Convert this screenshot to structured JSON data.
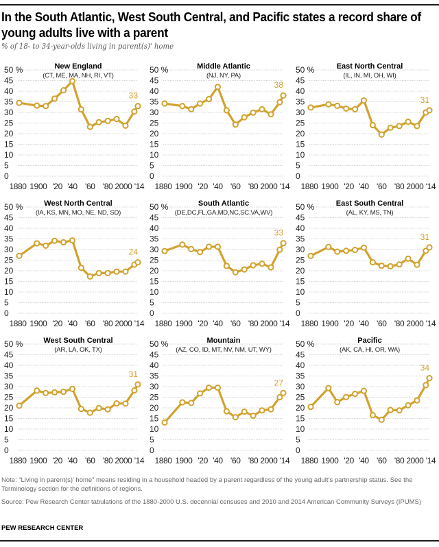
{
  "header": {
    "title": "In the South Atlantic, West South Central, and Pacific states a record share of young adults live with a parent",
    "subtitle": "% of 18- to 34-year-olds living in parent(s)' home"
  },
  "footer": {
    "note": "Note: “Living in parent(s)’ home” means residing in a household headed by a parent regardless of the young adult’s partnership status. See the Terminology section for the definitions of regions.",
    "source": "Source: Pew Research Center tabulations of the 1880-2000 U.S. decennial censuses and 2010 and 2014 American Community Surveys (IPUMS)",
    "brand": "PEW RESEARCH CENTER"
  },
  "colors": {
    "line": "#D1A22E",
    "grid": "#b5b5b5",
    "text": "#000000",
    "muted": "#666666"
  },
  "chart_data": [
    {
      "type": "line",
      "title": "New England",
      "subtitle": "(CT, ME, MA, NH, RI, VT)",
      "x": [
        1880,
        1900,
        1910,
        1920,
        1930,
        1940,
        1950,
        1960,
        1970,
        1980,
        1990,
        2000,
        2010,
        2014
      ],
      "values": [
        34.5,
        33.2,
        33,
        36.5,
        40.4,
        44.7,
        31.4,
        23.2,
        25.4,
        26,
        26.9,
        23.8,
        30.4,
        33
      ],
      "end_label": "33",
      "ylim": [
        0,
        50
      ],
      "yticks": [
        "50 %",
        "45",
        "40",
        "35",
        "30",
        "25",
        "20",
        "15",
        "10",
        "5",
        "0"
      ],
      "xticks": [
        "1880",
        "1900",
        "'20",
        "'40",
        "'60",
        "'80",
        "2000",
        "'14"
      ],
      "grid": true
    },
    {
      "type": "line",
      "title": "Middle Atlantic",
      "subtitle": "(NJ, NY, PA)",
      "x": [
        1880,
        1900,
        1910,
        1920,
        1930,
        1940,
        1950,
        1960,
        1970,
        1980,
        1990,
        2000,
        2010,
        2014
      ],
      "values": [
        34.2,
        33,
        31.5,
        34.2,
        36.3,
        42,
        31,
        24.3,
        27.7,
        29.9,
        31.5,
        29.1,
        34.8,
        38
      ],
      "end_label": "38",
      "ylim": [
        0,
        50
      ],
      "yticks": [
        "50 %",
        "45",
        "40",
        "35",
        "30",
        "25",
        "20",
        "15",
        "10",
        "5",
        "0"
      ],
      "xticks": [
        "1880",
        "1900",
        "'20",
        "'40",
        "'60",
        "'80",
        "2000",
        "'14"
      ],
      "grid": true
    },
    {
      "type": "line",
      "title": "East North Central",
      "subtitle": "(IL, IN, MI, OH, WI)",
      "x": [
        1880,
        1900,
        1910,
        1920,
        1930,
        1940,
        1950,
        1960,
        1970,
        1980,
        1990,
        2000,
        2010,
        2014
      ],
      "values": [
        32.3,
        33.8,
        33.1,
        31.8,
        31.5,
        35.6,
        24,
        19.6,
        22.8,
        23.6,
        25.6,
        23.6,
        30,
        31
      ],
      "end_label": "31",
      "ylim": [
        0,
        50
      ],
      "yticks": [
        "50 %",
        "45",
        "40",
        "35",
        "30",
        "25",
        "20",
        "15",
        "10",
        "5",
        "0"
      ],
      "xticks": [
        "1880",
        "1900",
        "'20",
        "'40",
        "'60",
        "'80",
        "2000",
        "'14"
      ],
      "grid": true
    },
    {
      "type": "line",
      "title": "West North Central",
      "subtitle": "(IA, KS, MN, MO, NE, ND, SD)",
      "x": [
        1880,
        1900,
        1910,
        1920,
        1930,
        1940,
        1950,
        1960,
        1970,
        1980,
        1990,
        2000,
        2010,
        2014
      ],
      "values": [
        27,
        32.9,
        31.8,
        34.1,
        33.4,
        34.3,
        21.4,
        17.3,
        18.9,
        18.9,
        19.6,
        19.6,
        22.9,
        24
      ],
      "end_label": "24",
      "ylim": [
        0,
        50
      ],
      "yticks": [
        "50 %",
        "45",
        "40",
        "35",
        "30",
        "25",
        "20",
        "15",
        "10",
        "5",
        "0"
      ],
      "xticks": [
        "1880",
        "1900",
        "'20",
        "'40",
        "'60",
        "'80",
        "2000",
        "'14"
      ],
      "grid": true
    },
    {
      "type": "line",
      "title": "South Atlantic",
      "subtitle": "(DE,DC,FL,GA,MD,NC,SC,VA,WV)",
      "x": [
        1880,
        1900,
        1910,
        1920,
        1930,
        1940,
        1950,
        1960,
        1970,
        1980,
        1990,
        2000,
        2010,
        2014
      ],
      "values": [
        29.3,
        32.3,
        30.2,
        28.8,
        31.3,
        31.3,
        22.3,
        19.3,
        20.6,
        22.6,
        23.3,
        21.6,
        29.9,
        33
      ],
      "end_label": "33",
      "ylim": [
        0,
        50
      ],
      "yticks": [
        "50 %",
        "45",
        "40",
        "35",
        "30",
        "25",
        "20",
        "15",
        "10",
        "5",
        "0"
      ],
      "xticks": [
        "1880",
        "1900",
        "'20",
        "'40",
        "'60",
        "'80",
        "2000",
        "'14"
      ],
      "grid": true
    },
    {
      "type": "line",
      "title": "East South Central",
      "subtitle": "(AL, KY, MS, TN)",
      "x": [
        1880,
        1900,
        1910,
        1920,
        1930,
        1940,
        1950,
        1960,
        1970,
        1980,
        1990,
        2000,
        2010,
        2014
      ],
      "values": [
        27,
        31.2,
        29,
        29.4,
        29.8,
        30.9,
        24,
        22.4,
        22.1,
        23,
        25.7,
        22.8,
        29.4,
        31
      ],
      "end_label": "31",
      "ylim": [
        0,
        50
      ],
      "yticks": [
        "50 %",
        "45",
        "40",
        "35",
        "30",
        "25",
        "20",
        "15",
        "10",
        "5",
        "0"
      ],
      "xticks": [
        "1880",
        "1900",
        "'20",
        "'40",
        "'60",
        "'80",
        "2000",
        "'14"
      ],
      "grid": true
    },
    {
      "type": "line",
      "title": "West South Central",
      "subtitle": "(AR, LA, OK, TX)",
      "x": [
        1880,
        1900,
        1910,
        1920,
        1930,
        1940,
        1950,
        1960,
        1970,
        1980,
        1990,
        2000,
        2010,
        2014
      ],
      "values": [
        21,
        28.1,
        27,
        27.3,
        27.6,
        28.9,
        19.5,
        17.7,
        19.9,
        19.3,
        22.1,
        22,
        28.2,
        31
      ],
      "end_label": "31",
      "ylim": [
        0,
        50
      ],
      "yticks": [
        "50 %",
        "45",
        "40",
        "35",
        "30",
        "25",
        "20",
        "15",
        "10",
        "5",
        "0"
      ],
      "xticks": [
        "1880",
        "1900",
        "'20",
        "'40",
        "'60",
        "'80",
        "2000",
        "'14"
      ],
      "grid": true
    },
    {
      "type": "line",
      "title": "Mountain",
      "subtitle": "(AZ, CO, ID, MT, NV, NM, UT, WY)",
      "x": [
        1880,
        1900,
        1910,
        1920,
        1930,
        1940,
        1950,
        1960,
        1970,
        1980,
        1990,
        2000,
        2010,
        2014
      ],
      "values": [
        13.1,
        22.6,
        22.3,
        26.8,
        29.5,
        29.5,
        18.4,
        15.6,
        18.2,
        16.3,
        18.8,
        19.3,
        25,
        27
      ],
      "end_label": "27",
      "ylim": [
        0,
        50
      ],
      "yticks": [
        "50 %",
        "45",
        "40",
        "35",
        "30",
        "25",
        "20",
        "15",
        "10",
        "5",
        "0"
      ],
      "xticks": [
        "1880",
        "1900",
        "'20",
        "'40",
        "'60",
        "'80",
        "2000",
        "'14"
      ],
      "grid": true
    },
    {
      "type": "line",
      "title": "Pacific",
      "subtitle": "(AK, CA, HI, OR, WA)",
      "x": [
        1880,
        1900,
        1910,
        1920,
        1930,
        1940,
        1950,
        1960,
        1970,
        1980,
        1990,
        2000,
        2010,
        2014
      ],
      "values": [
        20.5,
        29.3,
        22.7,
        25.1,
        26.6,
        28,
        16.6,
        14.4,
        19,
        18.8,
        21.2,
        23.5,
        30.7,
        34
      ],
      "end_label": "34",
      "ylim": [
        0,
        50
      ],
      "yticks": [
        "50 %",
        "45",
        "40",
        "35",
        "30",
        "25",
        "20",
        "15",
        "10",
        "5",
        "0"
      ],
      "xticks": [
        "1880",
        "1900",
        "'20",
        "'40",
        "'60",
        "'80",
        "2000",
        "'14"
      ],
      "grid": true
    }
  ]
}
